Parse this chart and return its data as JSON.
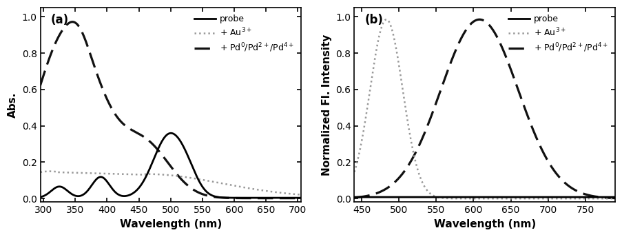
{
  "panel_a": {
    "title": "(a)",
    "xlabel": "Wavelength (nm)",
    "ylabel": "Abs.",
    "xlim": [
      295,
      705
    ],
    "ylim": [
      -0.02,
      1.05
    ],
    "xticks": [
      300,
      350,
      400,
      450,
      500,
      550,
      600,
      650,
      700
    ],
    "yticks": [
      0.0,
      0.2,
      0.4,
      0.6,
      0.8,
      1.0
    ],
    "probe_color": "#000000",
    "au_color": "#999999",
    "pd_color": "#111111",
    "legend_labels": [
      "probe",
      "+ Au$^{3+}$",
      "+ Pd$^{0}$/Pd$^{2+}$/Pd$^{4+}$"
    ]
  },
  "panel_b": {
    "title": "(b)",
    "xlabel": "Wavelength (nm)",
    "ylabel": "Normalized Fl. Intensity",
    "xlim": [
      440,
      790
    ],
    "ylim": [
      -0.02,
      1.05
    ],
    "xticks": [
      450,
      500,
      550,
      600,
      650,
      700,
      750
    ],
    "yticks": [
      0.0,
      0.2,
      0.4,
      0.6,
      0.8,
      1.0
    ],
    "probe_color": "#000000",
    "au_color": "#999999",
    "pd_color": "#111111",
    "legend_labels": [
      "probe",
      "+ Au$^{3+}$",
      "+ Pd$^{0}$/Pd$^{2+}$/Pd$^{4+}$"
    ]
  }
}
